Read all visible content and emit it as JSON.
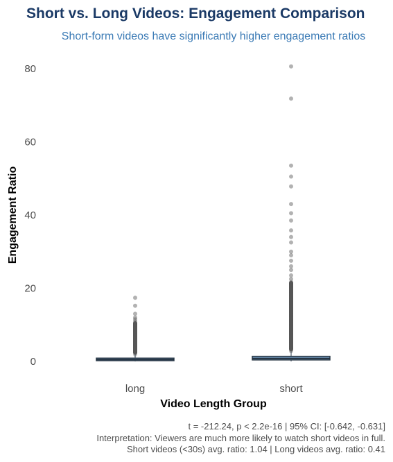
{
  "chart_data": {
    "type": "box",
    "title": "Short vs. Long Videos: Engagement Comparison",
    "subtitle": "Short-form videos have significantly higher engagement ratios",
    "xlabel": "Video Length Group",
    "ylabel": "Engagement Ratio",
    "categories": [
      "long",
      "short"
    ],
    "yticks": [
      0,
      20,
      40,
      60,
      80
    ],
    "ylim": [
      -3,
      84
    ],
    "grid": false,
    "box_fill": "#6b8fb0",
    "box_stroke": "#2b3a48",
    "outlier_color": "#555555",
    "boxes": [
      {
        "name": "long",
        "q1": 0.2,
        "median": 0.5,
        "q3": 0.9,
        "whisker_low": 0.0,
        "whisker_high": 1.9,
        "outlier_band": [
          1.9,
          11.0
        ],
        "outliers": [
          11.5,
          12.0,
          13.0,
          15.2,
          17.4
        ]
      },
      {
        "name": "short",
        "q1": 0.4,
        "median": 0.8,
        "q3": 1.4,
        "whisker_low": 0.0,
        "whisker_high": 2.8,
        "outlier_band": [
          2.8,
          22.0
        ],
        "outliers": [
          22.5,
          23.5,
          25.0,
          26.0,
          27.5,
          29.0,
          30.0,
          32.5,
          34.0,
          35.8,
          38.5,
          40.5,
          43.0,
          47.8,
          50.5,
          53.5,
          71.8,
          80.6
        ]
      }
    ],
    "caption": [
      "t = -212.24, p < 2.2e-16 | 95% CI: [-0.642, -0.631]",
      "Interpretation: Viewers are much more likely to watch short videos in full.",
      "Short videos (<30s) avg. ratio: 1.04 | Long videos avg. ratio: 0.41"
    ]
  }
}
